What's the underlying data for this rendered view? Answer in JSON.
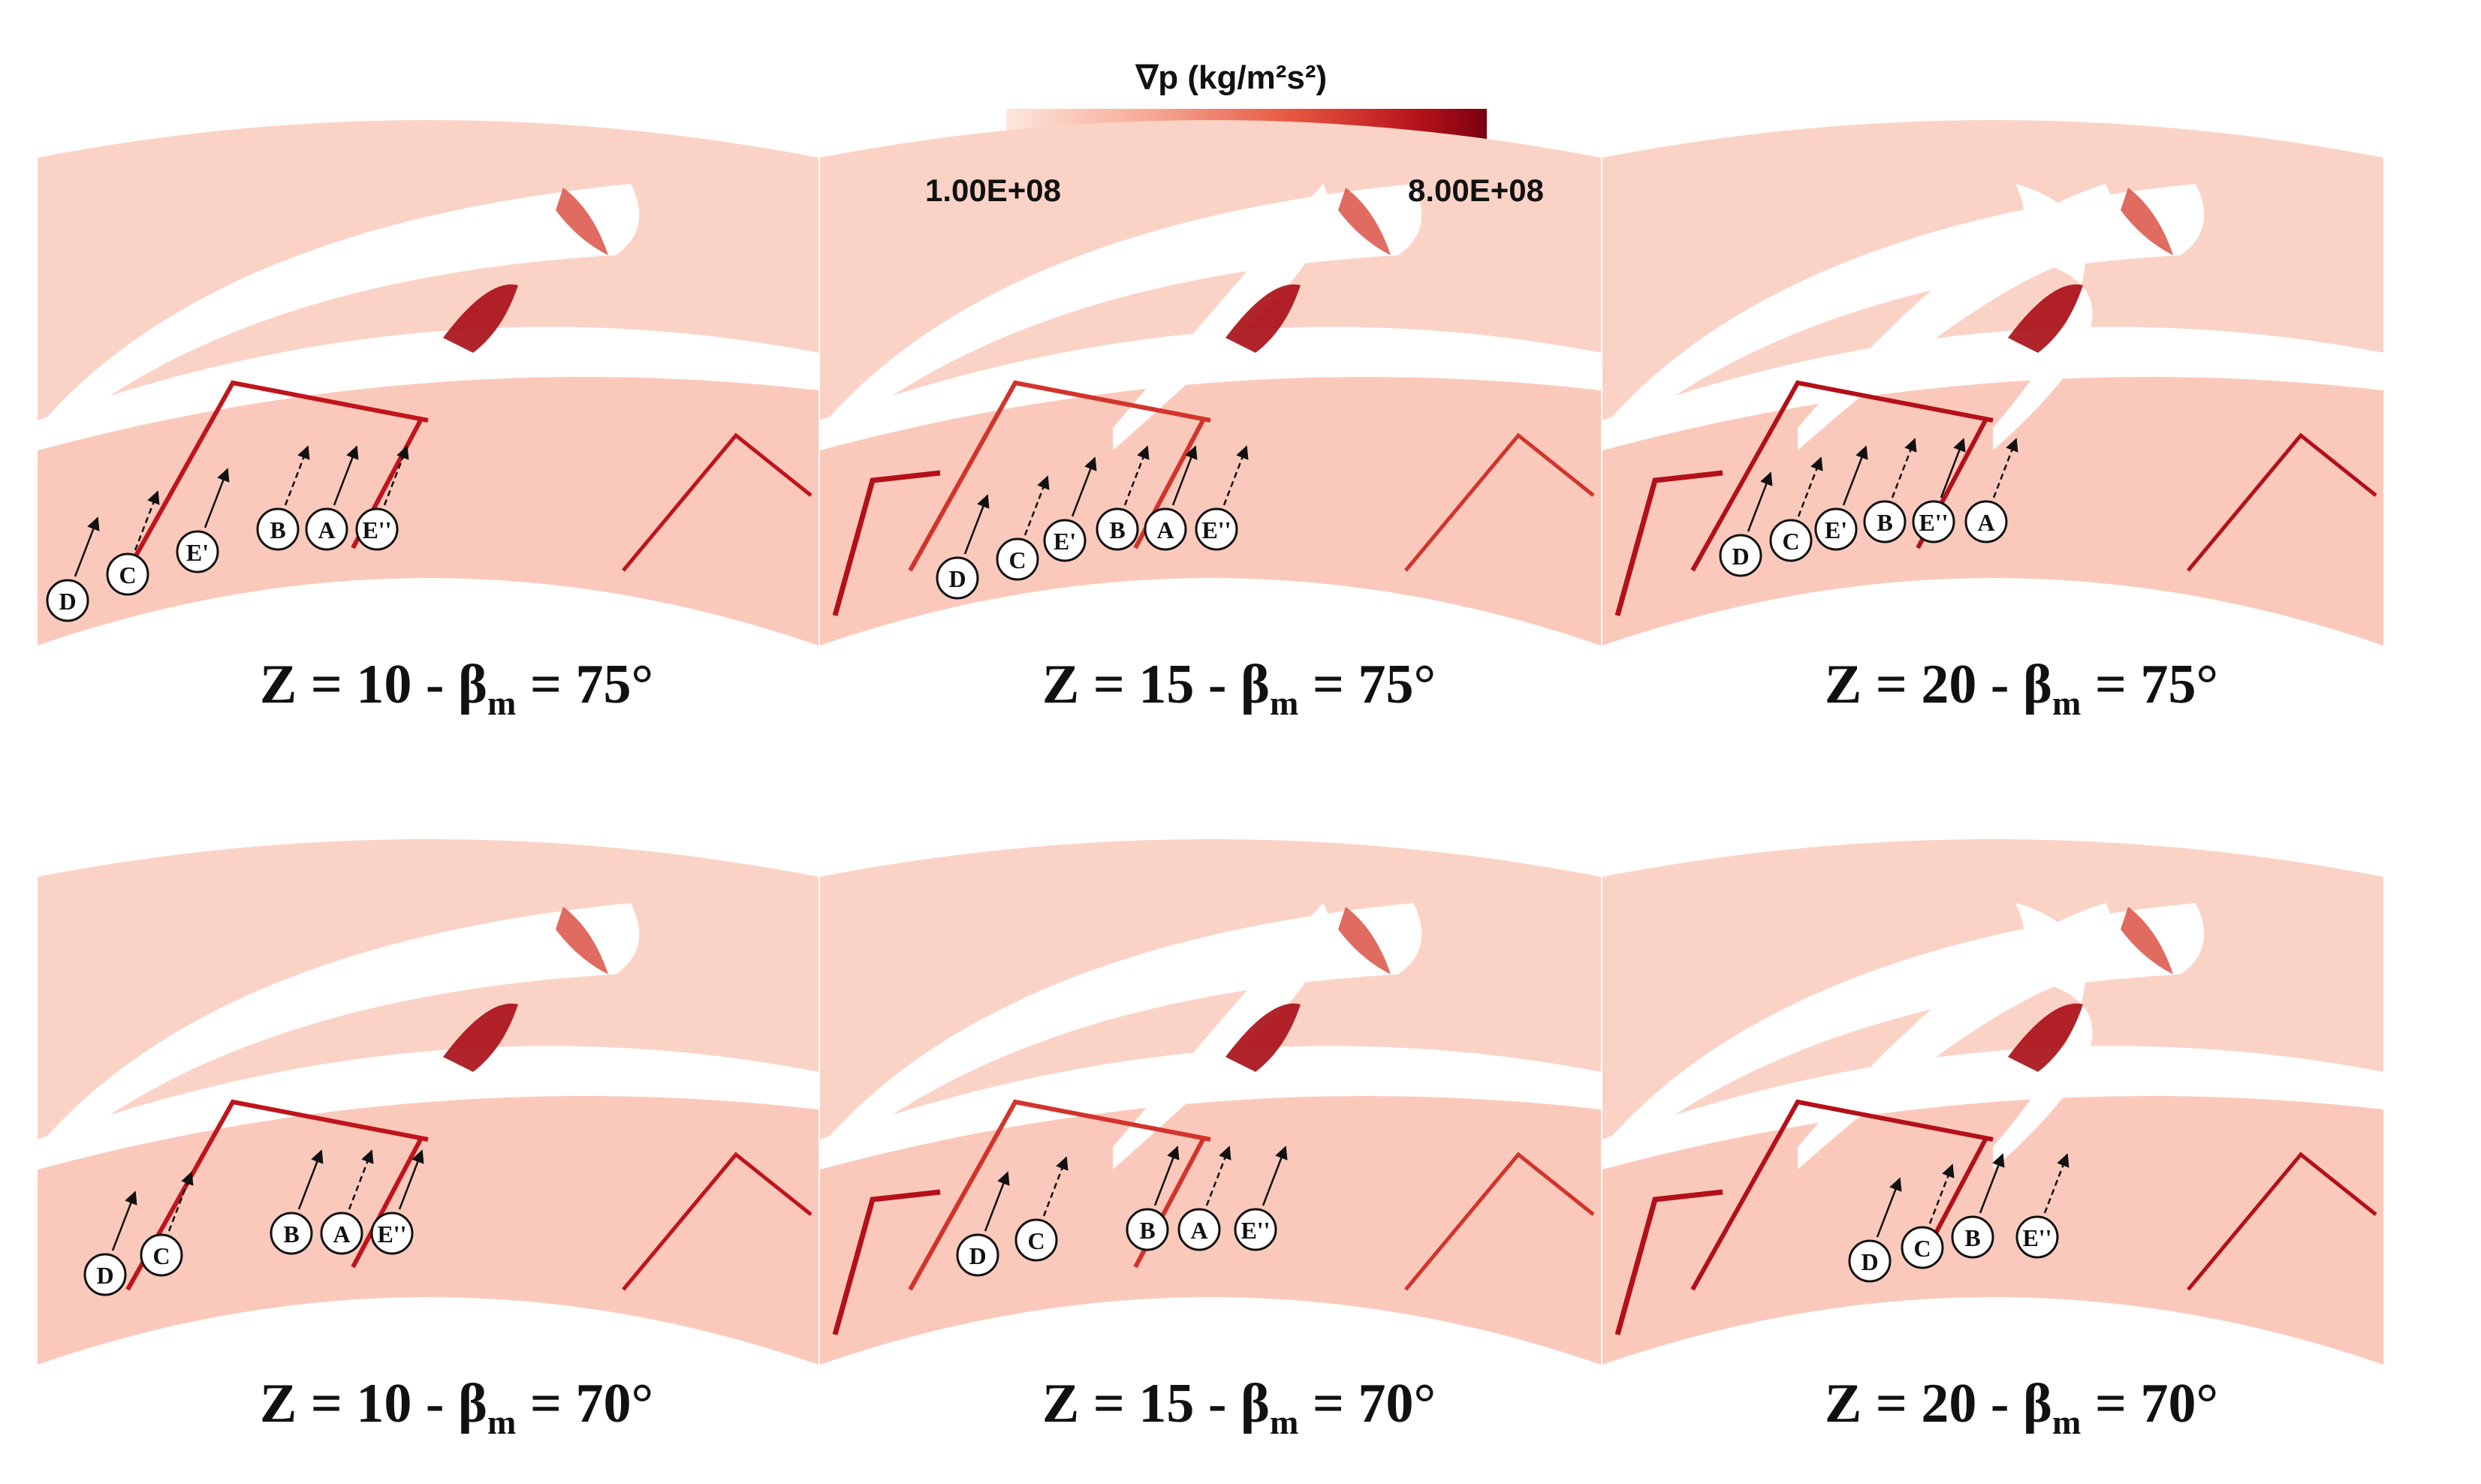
{
  "colorbar": {
    "title": "∇p (kg/m²s²)",
    "min_label": "1.00E+08",
    "max_label": "8.00E+08",
    "colors": [
      "#fde6dd",
      "#f6a995",
      "#e6553f",
      "#b8141c",
      "#7a0010"
    ]
  },
  "panels": [
    {
      "caption_pre": "Z = 10 - β",
      "caption_sub": "m",
      "caption_post": " = 75°",
      "markers": [
        "D",
        "C",
        "E'",
        "B",
        "A",
        "E''"
      ]
    },
    {
      "caption_pre": "Z = 15 - β",
      "caption_sub": "m",
      "caption_post": " = 75°",
      "markers": [
        "D",
        "C",
        "E'",
        "B",
        "A",
        "E''"
      ]
    },
    {
      "caption_pre": "Z = 20 - β",
      "caption_sub": "m",
      "caption_post": " = 75°",
      "markers": [
        "D",
        "C",
        "E'",
        "B",
        "E''",
        "A"
      ]
    },
    {
      "caption_pre": "Z = 10 - β",
      "caption_sub": "m",
      "caption_post": " = 70°",
      "markers": [
        "D",
        "C",
        "B",
        "A",
        "E''"
      ]
    },
    {
      "caption_pre": "Z = 15 - β",
      "caption_sub": "m",
      "caption_post": " = 70°",
      "markers": [
        "D",
        "C",
        "B",
        "A",
        "E''"
      ]
    },
    {
      "caption_pre": "Z = 20 - β",
      "caption_sub": "m",
      "caption_post": " = 70°",
      "markers": [
        "D",
        "C",
        "B",
        "E''"
      ]
    }
  ]
}
